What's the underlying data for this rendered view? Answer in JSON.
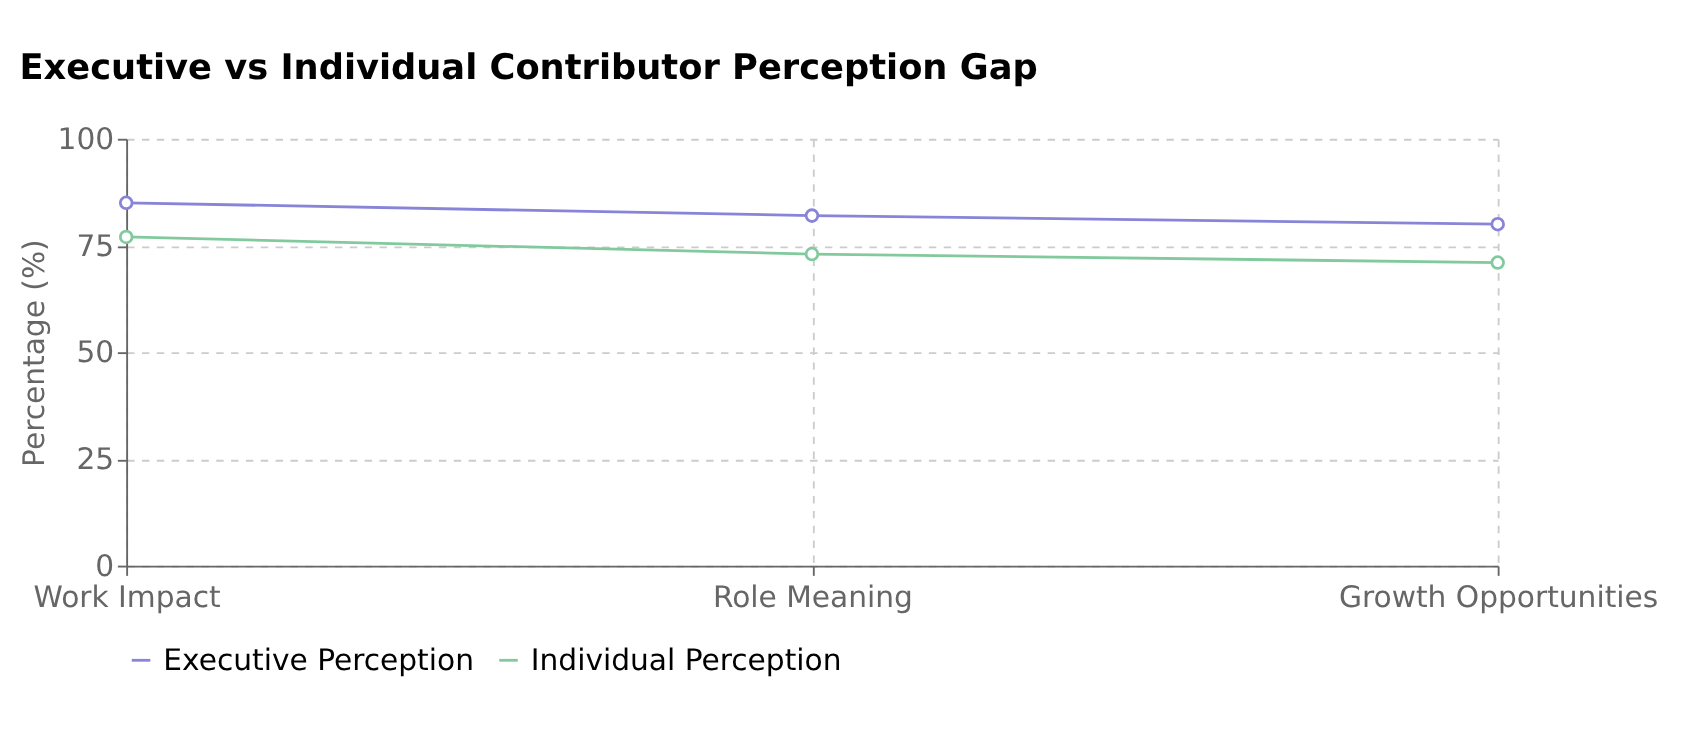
{
  "chart_data": {
    "type": "line",
    "title": "Executive vs Individual Contributor Perception Gap",
    "ylabel": "Percentage (%)",
    "categories": [
      "Work Impact",
      "Role Meaning",
      "Growth Opportunities"
    ],
    "series": [
      {
        "name": "Executive Perception",
        "color": "#8884d8",
        "values": [
          85,
          82,
          80
        ]
      },
      {
        "name": "Individual Perception",
        "color": "#82ca9d",
        "values": [
          77,
          73,
          71
        ]
      }
    ],
    "ylim": [
      0,
      100
    ],
    "yticks": [
      0,
      25,
      50,
      75,
      100
    ],
    "grid": true,
    "legend": "bottom",
    "marker": "circle",
    "line_style": "solid"
  }
}
